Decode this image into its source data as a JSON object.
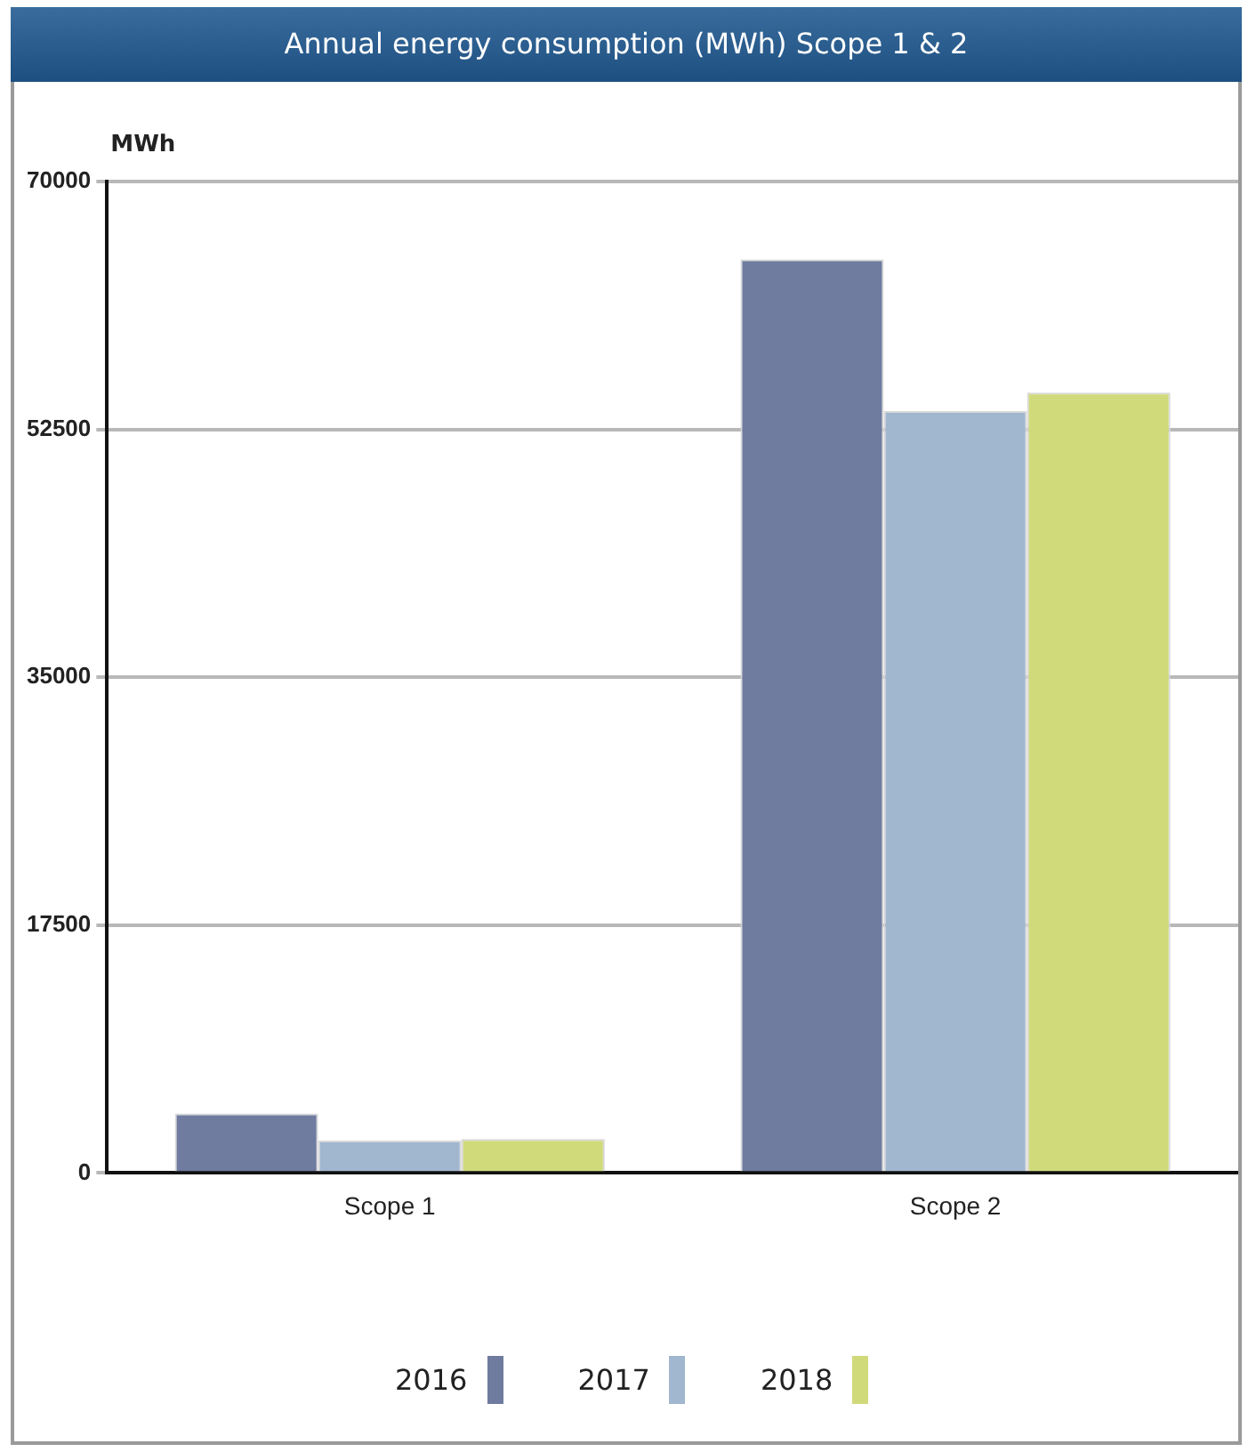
{
  "chart_data": {
    "type": "bar",
    "title": "Annual energy consumption (MWh) Scope 1 & 2",
    "ylabel": "MWh",
    "categories": [
      "Scope 1",
      "Scope 2"
    ],
    "series": [
      {
        "name": "2016",
        "color": "#6f7b9f",
        "values": [
          4200,
          64500
        ]
      },
      {
        "name": "2017",
        "color": "#a1b6cf",
        "values": [
          2300,
          53800
        ]
      },
      {
        "name": "2018",
        "color": "#d1da7b",
        "values": [
          2400,
          55100
        ]
      }
    ],
    "ylim": [
      0,
      70000
    ],
    "yticks": [
      0,
      17500,
      35000,
      52500,
      70000
    ],
    "grid": "y",
    "legend": "bottom"
  }
}
